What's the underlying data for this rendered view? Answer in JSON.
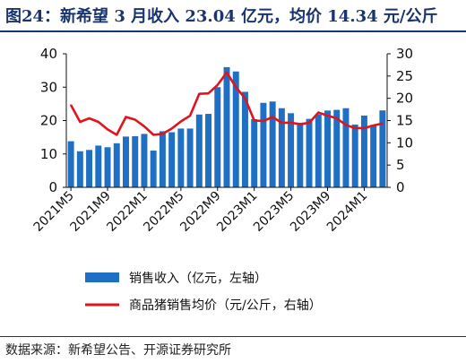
{
  "title": "图24：新希望 3 月收入 23.04 亿元，均价 14.34 元/公斤",
  "source": "数据来源：新希望公告、开源证券研究所",
  "chart_data": {
    "type": "bar+line",
    "categories": [
      "2021M5",
      "2021M6",
      "2021M7",
      "2021M8",
      "2021M9",
      "2021M10",
      "2021M11",
      "2021M12",
      "2022M1",
      "2022M2",
      "2022M3",
      "2022M4",
      "2022M5",
      "2022M6",
      "2022M7",
      "2022M8",
      "2022M9",
      "2022M10",
      "2022M11",
      "2022M12",
      "2023M1",
      "2023M2",
      "2023M3",
      "2023M4",
      "2023M5",
      "2023M6",
      "2023M7",
      "2023M8",
      "2023M9",
      "2023M10",
      "2023M11",
      "2023M12",
      "2024M1",
      "2024M2",
      "2024M3"
    ],
    "x_tick_labels": [
      "2021M5",
      "2021M9",
      "2022M1",
      "2022M5",
      "2022M9",
      "2023M1",
      "2023M5",
      "2023M9",
      "2024M1"
    ],
    "series": [
      {
        "name": "销售收入（亿元，左轴）",
        "type": "bar",
        "axis": "left",
        "color": "#1f6fc5",
        "values": [
          13.8,
          10.8,
          11.2,
          12.5,
          12.0,
          13.2,
          15.2,
          15.3,
          16.0,
          11.0,
          16.8,
          16.5,
          17.6,
          17.6,
          21.8,
          22.0,
          30.0,
          36.0,
          34.7,
          28.6,
          20.4,
          25.3,
          25.7,
          23.7,
          22.2,
          19.0,
          20.5,
          21.8,
          23.0,
          23.2,
          23.7,
          18.8,
          21.5,
          18.7,
          23.04
        ]
      },
      {
        "name": "商品猪销售均价（元/公斤，右轴）",
        "type": "line",
        "axis": "right",
        "color": "#e2141b",
        "values": [
          18.5,
          14.7,
          15.5,
          14.7,
          13.0,
          11.8,
          15.8,
          15.2,
          13.7,
          11.8,
          12.0,
          13.2,
          14.8,
          16.1,
          21.0,
          21.1,
          23.0,
          25.8,
          22.5,
          20.0,
          15.0,
          14.9,
          15.8,
          14.5,
          14.5,
          14.2,
          14.5,
          16.8,
          16.1,
          15.5,
          14.0,
          13.3,
          13.3,
          13.9,
          14.34
        ]
      }
    ],
    "y_left": {
      "min": 0,
      "max": 40,
      "ticks": [
        0,
        10,
        20,
        30,
        40
      ]
    },
    "y_right": {
      "min": 0,
      "max": 30,
      "ticks": [
        0,
        5,
        10,
        15,
        20,
        25,
        30
      ]
    },
    "legend_position": "bottom"
  }
}
